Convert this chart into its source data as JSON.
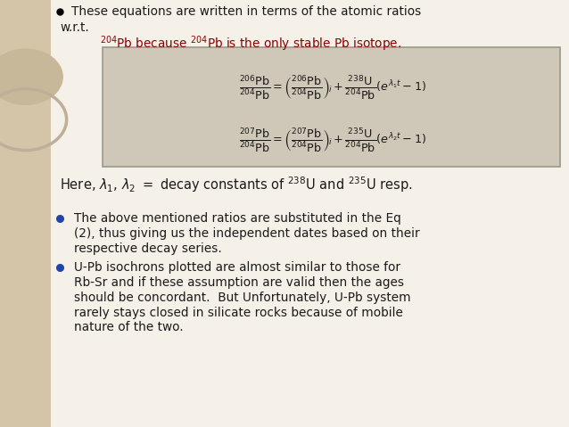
{
  "bg_color": "#f5f0e8",
  "left_panel_color": "#d4c5a9",
  "text_color": "#1a1a1a",
  "bullet_color": "#2244aa",
  "title_line1": "These equations are written in terms of the atomic ratios",
  "title_line2": "w.r.t.",
  "subtitle": "Pb because  Pb is the only stable Pb isotope.",
  "lambda_line": "Here,  decay constants of  U and  U resp.",
  "bullet1_line1": "The above mentioned ratios are substituted in the Eq",
  "bullet1_line2": "(2), thus giving us the independent dates based on their",
  "bullet1_line3": "respective decay series.",
  "bullet2_line1": "U-Pb isochrons plotted are almost similar to those for",
  "bullet2_line2": "Rb-Sr and if these assumption are valid then the ages",
  "bullet2_line3": "should be concordant.  But Unfortunately, U-Pb system",
  "bullet2_line4": "rarely stays closed in silicate rocks because of mobile",
  "bullet2_line5": "nature of the two.",
  "eq_box_color": "#cfc8b8",
  "eq_border_color": "#999988",
  "dark_red": "#8B0000",
  "circle1_color": "#c8b89a",
  "circle2_color": "#bfae98"
}
